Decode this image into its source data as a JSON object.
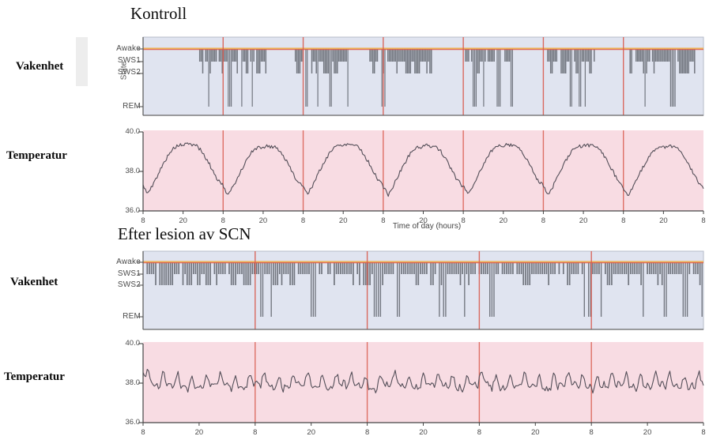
{
  "figure": {
    "section_titles": {
      "control": "Kontroll",
      "lesion": "Efter lesion av SCN"
    },
    "row_labels": {
      "wakefulness": "Vakenhet",
      "temperature": "Temperatur"
    }
  },
  "colors": {
    "page_bg": "#ffffff",
    "hypnogram_bg": "#e0e4f0",
    "temperature_bg": "#f8dce3",
    "day_line_red": "#d95c50",
    "awake_line_orange": "#efa83e",
    "awake_line_red": "#e0604e",
    "state_bars": "#72767f",
    "trace": "#534e58",
    "axis": "#555555",
    "axis_text": "#4b4b4b",
    "panel_border": "#b6bbc9"
  },
  "chart_data": [
    {
      "id": "sleep_state_control",
      "type": "hypnogram",
      "section": "Kontroll",
      "ylabel": "State",
      "states": [
        "Awake",
        "SWS1",
        "SWS2",
        "REM"
      ],
      "hours_total": 168,
      "day_length_hours": 24,
      "day_start_clock_hour": 8,
      "day_line_hours": [
        24,
        48,
        72,
        96,
        120,
        144
      ],
      "sleep_windows_hours": [
        [
          17,
          37
        ],
        [
          45.2,
          62.1
        ],
        [
          68,
          86.5
        ],
        [
          96.7,
          107.1
        ],
        [
          108.5,
          111
        ],
        [
          121.3,
          135.3
        ],
        [
          146,
          165.6
        ]
      ],
      "state_probabilities": {
        "awake": 0.13,
        "sws1": 0.48,
        "sws2": 0.22,
        "rem": 0.17
      },
      "epoch_hours": 0.45,
      "seed": 11
    },
    {
      "id": "temperature_control",
      "type": "line",
      "ylim": [
        36,
        40
      ],
      "y_tick_labels": [
        "40.0",
        "38.0",
        "36.0"
      ],
      "x_tick_labels": [
        "8",
        "20",
        "8",
        "20",
        "8",
        "20",
        "8",
        "20",
        "8",
        "20",
        "8",
        "20",
        "8",
        "20",
        "8"
      ],
      "xlabel": "Time of day (hours)",
      "hours_total": 168,
      "day_line_hours": [
        24,
        48,
        72,
        96,
        120,
        144
      ],
      "daily_profile_keypoints": [
        [
          0,
          37.25
        ],
        [
          1.5,
          36.85
        ],
        [
          3,
          37.3
        ],
        [
          5,
          38.0
        ],
        [
          8,
          38.95
        ],
        [
          10,
          39.25
        ],
        [
          13,
          39.35
        ],
        [
          16,
          39.3
        ],
        [
          17.5,
          39.0
        ],
        [
          20,
          38.3
        ],
        [
          22,
          37.65
        ],
        [
          24,
          37.25
        ]
      ],
      "noise_amplitude": 0.09,
      "day_offset_amplitude": 0.08,
      "sample_step_hours": 0.35,
      "seed": 5
    },
    {
      "id": "sleep_state_lesion",
      "type": "hypnogram",
      "section": "Efter lesion av SCN",
      "ylabel": "",
      "states": [
        "Awake",
        "SWS1",
        "SWS2",
        "REM"
      ],
      "hours_total": 120,
      "day_length_hours": 24,
      "day_start_clock_hour": 8,
      "day_line_hours": [
        24,
        48,
        72,
        96
      ],
      "sleep_windows_hours": [
        [
          0,
          120
        ]
      ],
      "state_probabilities": {
        "awake": 0.17,
        "sws1": 0.47,
        "sws2": 0.21,
        "rem": 0.15
      },
      "epoch_hours": 0.45,
      "seed": 23
    },
    {
      "id": "temperature_lesion",
      "type": "line",
      "ylim": [
        36,
        40
      ],
      "y_tick_labels": [
        "40.0",
        "38.0",
        "36.0"
      ],
      "x_tick_labels": [
        "8",
        "20",
        "8",
        "20",
        "8",
        "20",
        "8",
        "20",
        "8",
        "20",
        "8"
      ],
      "xlabel": "",
      "hours_total": 120,
      "day_line_hours": [
        24,
        48,
        72,
        96
      ],
      "mean": 38.0,
      "oscillations": [
        [
          3.1,
          0.27
        ],
        [
          1.55,
          0.2
        ],
        [
          9.5,
          0.12
        ]
      ],
      "noise_amplitude": 0.15,
      "start_spike": 0.85,
      "clamp": [
        37.15,
        38.95
      ],
      "sample_step_hours": 0.3,
      "seed": 41
    }
  ]
}
